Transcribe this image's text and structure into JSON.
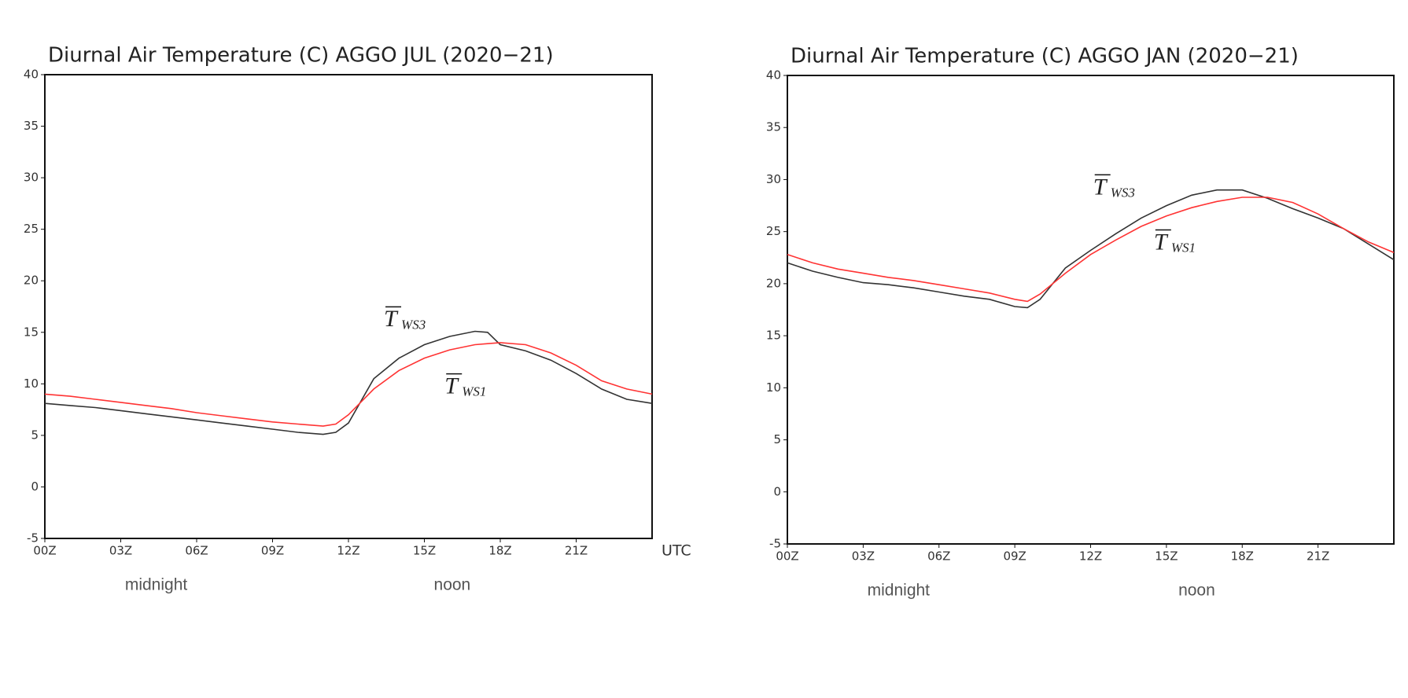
{
  "chart_data": [
    {
      "type": "line",
      "title": "Diurnal Air Temperature (C)  AGGO  JUL (2020−21)",
      "x": [
        0,
        1,
        2,
        3,
        4,
        5,
        6,
        7,
        8,
        9,
        10,
        11,
        11.5,
        12,
        13,
        14,
        15,
        16,
        17,
        17.5,
        18,
        19,
        20,
        21,
        22,
        23,
        24
      ],
      "series": [
        {
          "color": "#333333",
          "values": [
            8.1,
            7.9,
            7.7,
            7.4,
            7.1,
            6.8,
            6.5,
            6.2,
            5.9,
            5.6,
            5.3,
            5.1,
            5.3,
            6.2,
            10.5,
            12.5,
            13.8,
            14.6,
            15.1,
            15.0,
            13.8,
            13.2,
            12.3,
            11.0,
            9.5,
            8.5,
            8.1
          ]
        },
        {
          "color": "#ff3333",
          "values": [
            9.0,
            8.8,
            8.5,
            8.2,
            7.9,
            7.6,
            7.2,
            6.9,
            6.6,
            6.3,
            6.1,
            5.9,
            6.1,
            7.0,
            9.5,
            11.3,
            12.5,
            13.3,
            13.8,
            13.9,
            14.0,
            13.8,
            13.0,
            11.8,
            10.3,
            9.5,
            9.0
          ]
        }
      ],
      "annotations": [
        {
          "text": "T",
          "sub": "WS3"
        },
        {
          "text": "T",
          "sub": "WS1"
        }
      ],
      "x_notes": [
        "midnight",
        "noon"
      ],
      "xlabel": "UTC",
      "xlim": [
        0,
        24
      ],
      "ylim": [
        -5,
        40
      ],
      "xticks": [
        {
          "value": 0,
          "label": "00Z"
        },
        {
          "value": 3,
          "label": "03Z"
        },
        {
          "value": 6,
          "label": "06Z"
        },
        {
          "value": 9,
          "label": "09Z"
        },
        {
          "value": 12,
          "label": "12Z"
        },
        {
          "value": 15,
          "label": "15Z"
        },
        {
          "value": 18,
          "label": "18Z"
        },
        {
          "value": 21,
          "label": "21Z"
        }
      ],
      "yticks": [
        -5,
        0,
        5,
        10,
        15,
        20,
        25,
        30,
        35,
        40
      ]
    },
    {
      "type": "line",
      "title": "Diurnal Air Temperature (C)  AGGO  JAN (2020−21)",
      "x": [
        0,
        1,
        2,
        3,
        4,
        5,
        6,
        7,
        8,
        9,
        9.5,
        10,
        11,
        12,
        13,
        14,
        15,
        16,
        17,
        18,
        19,
        20,
        21,
        22,
        23,
        24
      ],
      "series": [
        {
          "color": "#333333",
          "values": [
            22.0,
            21.2,
            20.6,
            20.1,
            19.9,
            19.6,
            19.2,
            18.8,
            18.5,
            17.8,
            17.7,
            18.5,
            21.5,
            23.2,
            24.8,
            26.3,
            27.5,
            28.5,
            29.0,
            29.0,
            28.2,
            27.2,
            26.3,
            25.3,
            23.8,
            22.3
          ]
        },
        {
          "color": "#ff3333",
          "values": [
            22.8,
            22.0,
            21.4,
            21.0,
            20.6,
            20.3,
            19.9,
            19.5,
            19.1,
            18.5,
            18.3,
            19.0,
            21.0,
            22.8,
            24.2,
            25.5,
            26.5,
            27.3,
            27.9,
            28.3,
            28.3,
            27.8,
            26.7,
            25.3,
            24.0,
            23.0
          ]
        }
      ],
      "annotations": [
        {
          "text": "T",
          "sub": "WS3"
        },
        {
          "text": "T",
          "sub": "WS1"
        }
      ],
      "x_notes": [
        "midnight",
        "noon"
      ],
      "xlim": [
        0,
        24
      ],
      "ylim": [
        -5,
        40
      ],
      "xticks": [
        {
          "value": 0,
          "label": "00Z"
        },
        {
          "value": 3,
          "label": "03Z"
        },
        {
          "value": 6,
          "label": "06Z"
        },
        {
          "value": 9,
          "label": "09Z"
        },
        {
          "value": 12,
          "label": "12Z"
        },
        {
          "value": 15,
          "label": "15Z"
        },
        {
          "value": 18,
          "label": "18Z"
        },
        {
          "value": 21,
          "label": "21Z"
        }
      ],
      "yticks": [
        -5,
        0,
        5,
        10,
        15,
        20,
        25,
        30,
        35,
        40
      ]
    }
  ]
}
